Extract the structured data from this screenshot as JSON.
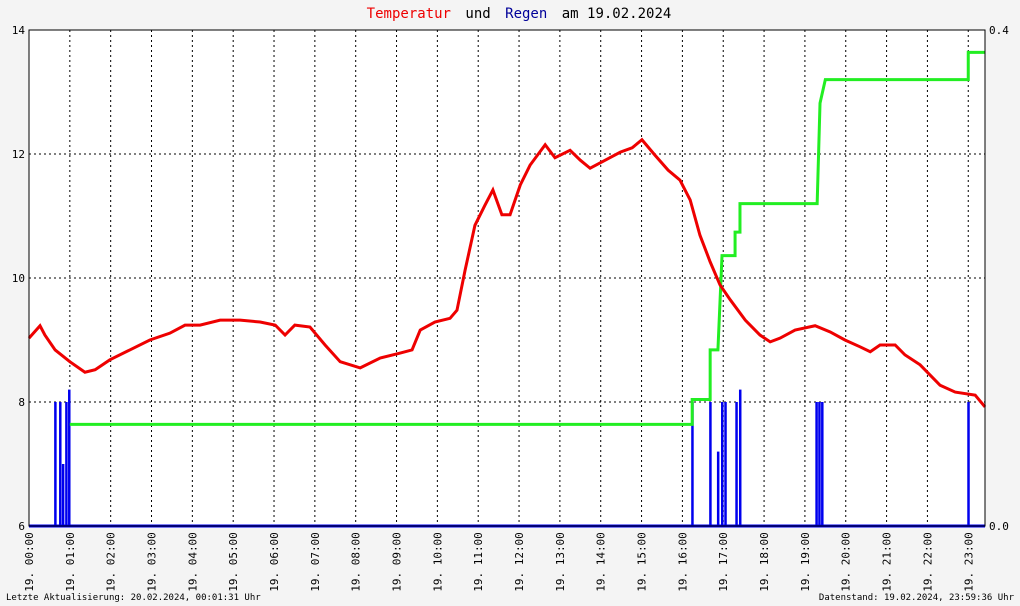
{
  "chart_data": {
    "type": "line",
    "title_connector": "und",
    "title_date": "am 19.02.2024",
    "footer_left": "Letzte Aktualisierung: 20.02.2024, 00:01:31 Uhr",
    "footer_right": "Datenstand: 19.02.2024, 23:59:36 Uhr",
    "xlim": [
      0,
      23.41
    ],
    "xticks": [
      {
        "value": 0,
        "label": "19. 00:00"
      },
      {
        "value": 1,
        "label": "19. 01:00"
      },
      {
        "value": 2,
        "label": "19. 02:00"
      },
      {
        "value": 3,
        "label": "19. 03:00"
      },
      {
        "value": 4,
        "label": "19. 04:00"
      },
      {
        "value": 5,
        "label": "19. 05:00"
      },
      {
        "value": 6,
        "label": "19. 06:00"
      },
      {
        "value": 7,
        "label": "19. 07:00"
      },
      {
        "value": 8,
        "label": "19. 08:00"
      },
      {
        "value": 9,
        "label": "19. 09:00"
      },
      {
        "value": 10,
        "label": "19. 10:00"
      },
      {
        "value": 11,
        "label": "19. 11:00"
      },
      {
        "value": 12,
        "label": "19. 12:00"
      },
      {
        "value": 13,
        "label": "19. 13:00"
      },
      {
        "value": 14,
        "label": "19. 14:00"
      },
      {
        "value": 15,
        "label": "19. 15:00"
      },
      {
        "value": 16,
        "label": "19. 16:00"
      },
      {
        "value": 17,
        "label": "19. 17:00"
      },
      {
        "value": 18,
        "label": "19. 18:00"
      },
      {
        "value": 19,
        "label": "19. 19:00"
      },
      {
        "value": 20,
        "label": "19. 20:00"
      },
      {
        "value": 21,
        "label": "19. 21:00"
      },
      {
        "value": 22,
        "label": "19. 22:00"
      },
      {
        "value": 23,
        "label": "19. 23:00"
      }
    ],
    "ylim": [
      6,
      14
    ],
    "yticks": [
      6,
      8,
      10,
      12,
      14
    ],
    "y2lim": [
      0,
      0.4
    ],
    "y2ticks": [
      {
        "value": 0,
        "label": "0.0"
      },
      {
        "value": 0.4,
        "label": "0.4"
      }
    ],
    "grid": true,
    "series": [
      {
        "name": "Temperatur",
        "color": "#ee0000",
        "kind": "line",
        "x": [
          0,
          0.27,
          0.39,
          0.64,
          1.0,
          1.37,
          1.62,
          1.98,
          2.47,
          2.96,
          3.45,
          3.82,
          4.19,
          4.68,
          5.17,
          5.66,
          6.03,
          6.27,
          6.51,
          6.88,
          7.25,
          7.62,
          8.11,
          8.6,
          9.09,
          9.38,
          9.58,
          9.94,
          10.31,
          10.48,
          10.68,
          10.92,
          11.17,
          11.36,
          11.58,
          11.78,
          12.03,
          12.27,
          12.64,
          12.88,
          13.25,
          13.5,
          13.74,
          14.11,
          14.48,
          14.77,
          15.01,
          15.33,
          15.65,
          15.94,
          16.19,
          16.43,
          16.68,
          16.92,
          17.17,
          17.54,
          17.9,
          18.15,
          18.39,
          18.76,
          19.25,
          19.62,
          19.98,
          20.35,
          20.6,
          20.84,
          21.21,
          21.45,
          21.82,
          22.31,
          22.68,
          23.17,
          23.41
        ],
        "values": [
          9.03,
          9.23,
          9.08,
          8.84,
          8.65,
          8.48,
          8.52,
          8.68,
          8.84,
          9.0,
          9.11,
          9.24,
          9.24,
          9.32,
          9.32,
          9.29,
          9.24,
          9.08,
          9.24,
          9.21,
          8.92,
          8.65,
          8.55,
          8.71,
          8.79,
          8.84,
          9.16,
          9.29,
          9.35,
          9.48,
          10.13,
          10.85,
          11.18,
          11.42,
          11.02,
          11.02,
          11.5,
          11.82,
          12.15,
          11.94,
          12.06,
          11.9,
          11.77,
          11.9,
          12.03,
          12.1,
          12.23,
          11.98,
          11.74,
          11.58,
          11.26,
          10.69,
          10.26,
          9.89,
          9.65,
          9.32,
          9.08,
          8.97,
          9.03,
          9.16,
          9.23,
          9.13,
          9.0,
          8.89,
          8.81,
          8.92,
          8.92,
          8.76,
          8.6,
          8.27,
          8.16,
          8.11,
          7.92
        ]
      },
      {
        "name": "Regen",
        "color": "#0000ee",
        "kind": "bar",
        "axis": "y2",
        "x": [
          0.64,
          0.76,
          0.83,
          0.91,
          0.98,
          16.24,
          16.68,
          16.87,
          16.97,
          17.05,
          17.32,
          17.41,
          19.28,
          19.35,
          19.42,
          23.0
        ],
        "values": [
          0.1,
          0.1,
          0.05,
          0.1,
          0.11,
          0.1,
          0.1,
          0.06,
          0.1,
          0.1,
          0.1,
          0.11,
          0.1,
          0.1,
          0.1,
          0.1
        ]
      },
      {
        "color": "#22ee22",
        "kind": "line",
        "axis": "y2",
        "x": [
          1.0,
          16.24,
          16.24,
          16.68,
          16.68,
          16.87,
          16.97,
          17.29,
          17.29,
          17.41,
          17.41,
          19.3,
          19.37,
          19.5,
          23.0,
          23.0,
          23.41
        ],
        "values": [
          0.082,
          0.082,
          0.102,
          0.102,
          0.142,
          0.142,
          0.218,
          0.218,
          0.237,
          0.237,
          0.26,
          0.26,
          0.341,
          0.36,
          0.36,
          0.382,
          0.382
        ]
      }
    ]
  }
}
